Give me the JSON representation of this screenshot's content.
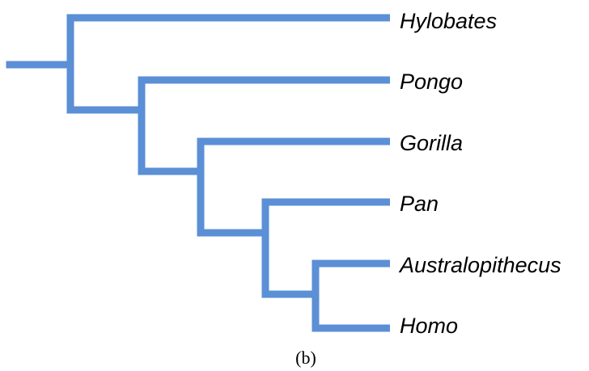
{
  "diagram": {
    "branch_color": "#5b8fd6",
    "taxa": [
      {
        "label": "Hylobates"
      },
      {
        "label": "Pongo"
      },
      {
        "label": "Gorilla"
      },
      {
        "label": "Pan"
      },
      {
        "label": "Australopithecus"
      },
      {
        "label": "Homo"
      }
    ],
    "caption": "(b)"
  }
}
